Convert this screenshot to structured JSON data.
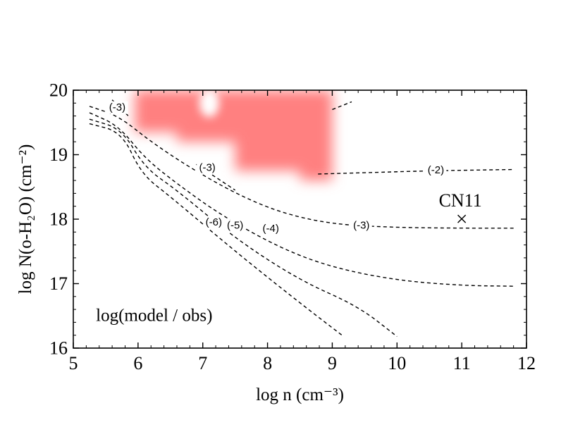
{
  "chart_data": {
    "type": "contour",
    "title": "",
    "xlabel": "log n (cm⁻³)",
    "ylabel": "log N(o-H₂O) (cm⁻²)",
    "xlim": [
      5,
      12
    ],
    "ylim": [
      16,
      20
    ],
    "xticks": [
      5,
      6,
      7,
      8,
      9,
      10,
      11,
      12
    ],
    "yticks": [
      16,
      17,
      18,
      19,
      20
    ],
    "annotation": "log(model / obs)",
    "marker": {
      "label": "CN11",
      "symbol": "×",
      "x": 11.0,
      "y": 18.0
    },
    "shaded_region": {
      "color": "#ff8080",
      "description": "best-fit region",
      "cells": [
        {
          "x0": 5.95,
          "x1": 6.6,
          "y0": 19.35,
          "y1": 20.0
        },
        {
          "x0": 6.6,
          "x1": 8.7,
          "y0": 19.2,
          "y1": 20.0
        },
        {
          "x0": 7.5,
          "x1": 8.7,
          "y0": 18.75,
          "y1": 19.3
        },
        {
          "x0": 8.5,
          "x1": 9.0,
          "y0": 18.6,
          "y1": 20.0
        }
      ],
      "hole": {
        "x": 7.1,
        "y": 19.8
      }
    },
    "contours": [
      {
        "level": "-2",
        "x": [
          8.78,
          9.5,
          10.5,
          11.8
        ],
        "y": [
          18.7,
          18.72,
          18.75,
          18.77
        ],
        "label": {
          "text": "(-2)",
          "x": 10.6,
          "y": 18.76
        }
      },
      {
        "level": "-2",
        "x": [
          9.0,
          9.3
        ],
        "y": [
          19.7,
          19.82
        ]
      },
      {
        "level": "-3",
        "x": [
          5.25,
          5.7,
          6.2,
          6.8,
          7.5,
          8.2,
          9.0,
          10.0,
          11.0,
          11.8
        ],
        "y": [
          19.75,
          19.6,
          19.2,
          18.8,
          18.4,
          18.1,
          17.92,
          17.87,
          17.86,
          17.86
        ],
        "label": {
          "text": "(-3)",
          "x": 9.45,
          "y": 17.9
        }
      },
      {
        "level": "-4",
        "x": [
          5.25,
          5.7,
          6.1,
          6.6,
          7.3,
          8.2,
          9.0,
          10.0,
          11.0,
          11.8
        ],
        "y": [
          19.65,
          19.45,
          18.95,
          18.55,
          18.05,
          17.55,
          17.25,
          17.05,
          16.97,
          16.96
        ],
        "label": {
          "text": "(-4)",
          "x": 8.05,
          "y": 17.85
        }
      },
      {
        "level": "-5",
        "x": [
          5.25,
          5.75,
          6.1,
          6.6,
          7.5,
          8.5,
          9.4,
          10.0
        ],
        "y": [
          19.55,
          19.4,
          18.8,
          18.45,
          17.7,
          17.05,
          16.65,
          16.18
        ],
        "label": {
          "text": "(-5)",
          "x": 7.5,
          "y": 17.9
        }
      },
      {
        "level": "-6",
        "x": [
          5.25,
          5.75,
          6.05,
          6.5,
          7.5,
          8.5,
          9.15
        ],
        "y": [
          19.48,
          19.35,
          18.7,
          18.35,
          17.5,
          16.7,
          16.2
        ],
        "label": {
          "text": "(-6)",
          "x": 7.17,
          "y": 17.95
        }
      },
      {
        "level": "-3",
        "x": [
          5.6,
          5.85
        ],
        "y": [
          19.85,
          19.6
        ],
        "label": {
          "text": "(-3)",
          "x": 5.68,
          "y": 19.73
        }
      },
      {
        "level": "-3",
        "x": [
          6.9,
          7.5
        ],
        "y": [
          18.85,
          18.45
        ],
        "label": {
          "text": "(-3)",
          "x": 7.07,
          "y": 18.8
        }
      }
    ]
  }
}
